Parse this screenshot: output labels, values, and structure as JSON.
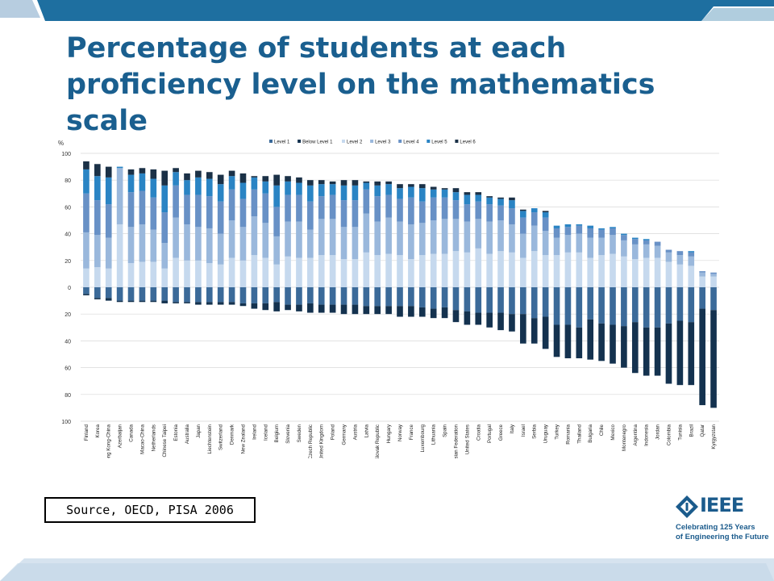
{
  "title": "Percentage of students at each proficiency level on the mathematics scale",
  "source": "Source, OECD, PISA 2006",
  "logo": {
    "word": "IEEE",
    "line1": "Celebrating 125 Years",
    "line2": "of Engineering the Future"
  },
  "colors": {
    "title": "#1a5f8f",
    "band": "#1e6fa0",
    "logo": "#1b5b8c"
  },
  "chart_data": {
    "type": "bar",
    "stacked": "diverging",
    "ylabel": "%",
    "ylim": [
      -100,
      100
    ],
    "yticks": [
      100,
      80,
      60,
      40,
      20,
      0,
      20,
      40,
      60,
      80,
      100
    ],
    "legend_position": "top",
    "grid": true,
    "categories": [
      "Finland",
      "Korea",
      "Hong Kong-China",
      "Azerbaijan",
      "Canada",
      "Macao-China",
      "Netherlands",
      "Chinese Taipei",
      "Estonia",
      "Australia",
      "Japan",
      "Liechtenstein",
      "Switzerland",
      "Denmark",
      "New Zealand",
      "Ireland",
      "Iceland",
      "Belgium",
      "Slovenia",
      "Sweden",
      "Czech Republic",
      "United Kingdom",
      "Poland",
      "Germany",
      "Austria",
      "Latvia",
      "Slovak Republic",
      "Hungary",
      "Norway",
      "France",
      "Luxembourg",
      "Lithuania",
      "Spain",
      "Russian Federation",
      "United States",
      "Croatia",
      "Portugal",
      "Greece",
      "Italy",
      "Israel",
      "Serbia",
      "Uruguay",
      "Turkey",
      "Romania",
      "Thailand",
      "Bulgaria",
      "Chile",
      "Mexico",
      "Montenegro",
      "Argentina",
      "Indonesia",
      "Jordan",
      "Colombia",
      "Tunisia",
      "Brazil",
      "Qatar",
      "Kyrgyzstan"
    ],
    "series": [
      {
        "name": "Level 1",
        "color": "#3b6a99",
        "values": [
          -5,
          -8,
          -8,
          -10,
          -10,
          -10,
          -10,
          -10,
          -11,
          -11,
          -11,
          -11,
          -11,
          -11,
          -12,
          -12,
          -12,
          -11,
          -13,
          -13,
          -12,
          -13,
          -13,
          -13,
          -13,
          -14,
          -14,
          -14,
          -14,
          -14,
          -15,
          -16,
          -15,
          -17,
          -18,
          -19,
          -19,
          -19,
          -20,
          -20,
          -23,
          -22,
          -28,
          -28,
          -30,
          -24,
          -27,
          -28,
          -29,
          -26,
          -30,
          -30,
          -27,
          -25,
          -26,
          -16,
          -17
        ]
      },
      {
        "name": "Below Level 1",
        "color": "#14324f",
        "values": [
          -1,
          -1,
          -2,
          -1,
          -1,
          -1,
          -1,
          -2,
          -1,
          -1,
          -2,
          -2,
          -2,
          -2,
          -2,
          -4,
          -5,
          -7,
          -4,
          -5,
          -7,
          -6,
          -6,
          -7,
          -7,
          -6,
          -6,
          -6,
          -8,
          -8,
          -7,
          -7,
          -8,
          -9,
          -10,
          -9,
          -11,
          -13,
          -13,
          -22,
          -19,
          -24,
          -24,
          -25,
          -23,
          -30,
          -28,
          -29,
          -31,
          -38,
          -36,
          -36,
          -45,
          -48,
          -47,
          -72,
          -73
        ]
      },
      {
        "name": "Level 2",
        "color": "#c6d9ee",
        "values": [
          14,
          15,
          14,
          47,
          18,
          19,
          19,
          14,
          22,
          20,
          20,
          18,
          17,
          22,
          20,
          24,
          22,
          17,
          23,
          22,
          22,
          24,
          24,
          21,
          21,
          26,
          24,
          25,
          24,
          21,
          24,
          25,
          25,
          27,
          26,
          29,
          25,
          27,
          26,
          22,
          27,
          24,
          24,
          26,
          26,
          22,
          24,
          25,
          23,
          21,
          22,
          22,
          19,
          17,
          16,
          8,
          8
        ]
      },
      {
        "name": "Level 3",
        "color": "#9ab8dc",
        "values": [
          27,
          24,
          23,
          42,
          27,
          28,
          24,
          19,
          30,
          27,
          25,
          26,
          23,
          28,
          25,
          29,
          26,
          21,
          26,
          27,
          21,
          27,
          27,
          24,
          24,
          29,
          25,
          27,
          25,
          26,
          24,
          25,
          26,
          24,
          23,
          22,
          24,
          23,
          21,
          18,
          19,
          18,
          13,
          13,
          14,
          15,
          13,
          14,
          12,
          11,
          10,
          9,
          7,
          7,
          7,
          3,
          2
        ]
      },
      {
        "name": "Level 4",
        "color": "#6891c6",
        "values": [
          29,
          26,
          25,
          0,
          26,
          25,
          24,
          23,
          24,
          22,
          24,
          24,
          24,
          23,
          21,
          20,
          22,
          22,
          20,
          20,
          21,
          17,
          18,
          20,
          20,
          18,
          19,
          17,
          17,
          20,
          16,
          17,
          16,
          14,
          13,
          13,
          13,
          11,
          12,
          12,
          10,
          10,
          7,
          6,
          6,
          7,
          6,
          5,
          4,
          4,
          3,
          3,
          2,
          3,
          3,
          1,
          1
        ]
      },
      {
        "name": "Level 5",
        "color": "#2a84c4",
        "values": [
          18,
          18,
          20,
          1,
          13,
          13,
          14,
          20,
          10,
          11,
          13,
          13,
          13,
          10,
          12,
          9,
          9,
          16,
          10,
          9,
          12,
          9,
          8,
          11,
          11,
          5,
          8,
          8,
          8,
          8,
          10,
          6,
          6,
          6,
          7,
          5,
          5,
          5,
          6,
          5,
          3,
          4,
          2,
          2,
          1,
          2,
          1,
          1,
          1,
          1,
          1,
          0,
          0,
          0,
          1,
          0,
          0
        ]
      },
      {
        "name": "Level 6",
        "color": "#1b3147",
        "values": [
          6,
          9,
          8,
          0,
          4,
          4,
          7,
          11,
          3,
          5,
          5,
          5,
          7,
          4,
          7,
          1,
          4,
          8,
          4,
          4,
          4,
          3,
          2,
          4,
          4,
          1,
          3,
          2,
          3,
          2,
          3,
          2,
          1,
          3,
          2,
          2,
          1,
          1,
          2,
          1,
          0,
          1,
          0,
          0,
          0,
          0,
          0,
          0,
          0,
          0,
          0,
          0,
          0,
          0,
          0,
          0,
          0
        ]
      }
    ]
  }
}
